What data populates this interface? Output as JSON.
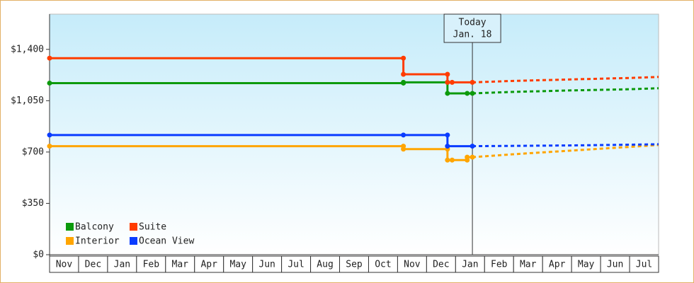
{
  "chart_data": {
    "type": "line",
    "categories": [
      "Nov",
      "Dec",
      "Jan",
      "Feb",
      "Mar",
      "Apr",
      "May",
      "Jun",
      "Jul",
      "Aug",
      "Sep",
      "Oct",
      "Nov",
      "Dec",
      "Jan",
      "Feb",
      "Mar",
      "Apr",
      "May",
      "Jun",
      "Jul"
    ],
    "xlim": [
      0,
      21
    ],
    "ylim": [
      0,
      1640
    ],
    "yticks": [
      {
        "value": 0,
        "label": "$0"
      },
      {
        "value": 350,
        "label": "$350"
      },
      {
        "value": 700,
        "label": "$700"
      },
      {
        "value": 1050,
        "label": "$1,050"
      },
      {
        "value": 1400,
        "label": "$1,400"
      }
    ],
    "legend": "lower-left",
    "series": [
      {
        "name": "Balcony",
        "color": "#0c9a0c",
        "x": [
          0,
          12.2,
          12.2,
          13.72,
          13.72,
          14.4,
          14.58
        ],
        "values": [
          1170,
          1170,
          1175,
          1175,
          1100,
          1100,
          1100
        ],
        "forecast": {
          "x": [
            14.58,
            16,
            18,
            20,
            21
          ],
          "values": [
            1100,
            1110,
            1120,
            1128,
            1135
          ]
        }
      },
      {
        "name": "Suite",
        "color": "#ff3c00",
        "x": [
          0,
          12.2,
          12.2,
          13.72,
          13.72,
          13.88,
          14.58
        ],
        "values": [
          1340,
          1340,
          1230,
          1230,
          1175,
          1175,
          1175
        ],
        "forecast": {
          "x": [
            14.58,
            16,
            18,
            20,
            21
          ],
          "values": [
            1175,
            1185,
            1195,
            1205,
            1212
          ]
        }
      },
      {
        "name": "Interior",
        "color": "#ffa500",
        "x": [
          0,
          12.2,
          12.2,
          13.72,
          13.72,
          13.88,
          14.4,
          14.4,
          14.58
        ],
        "values": [
          740,
          740,
          720,
          720,
          645,
          645,
          645,
          665,
          665
        ],
        "forecast": {
          "x": [
            14.58,
            16,
            18,
            20,
            21
          ],
          "values": [
            665,
            685,
            710,
            735,
            748
          ]
        }
      },
      {
        "name": "Ocean View",
        "color": "#0a3cff",
        "x": [
          0,
          12.2,
          13.72,
          13.72,
          14.58
        ],
        "values": [
          816,
          816,
          816,
          740,
          740
        ],
        "forecast": {
          "x": [
            14.58,
            16,
            18,
            20,
            21
          ],
          "values": [
            740,
            742,
            745,
            750,
            753
          ]
        }
      }
    ],
    "today": {
      "x": 14.58,
      "label": "Today",
      "date": "Jan. 18"
    }
  }
}
